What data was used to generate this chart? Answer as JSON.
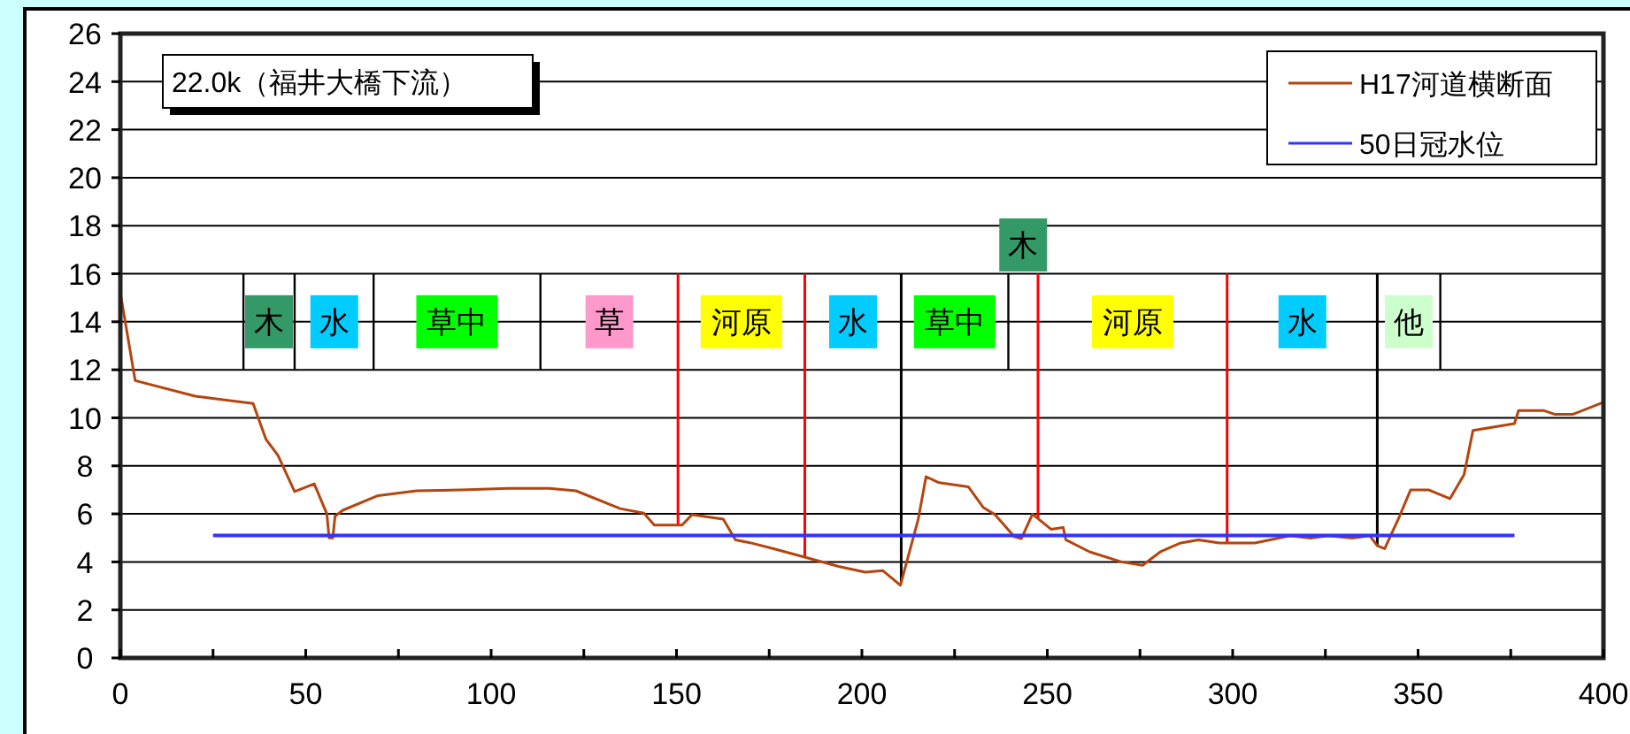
{
  "chart_data": {
    "type": "line",
    "title": "22.0k（福井大橋下流）",
    "series": [
      {
        "name": "H17河道横断面",
        "color": "#b5450f",
        "x": [
          0,
          4,
          20.2,
          35.8,
          39.3,
          42.5,
          47,
          52.3,
          55.7,
          56.3,
          57.3,
          57.9,
          60,
          69.5,
          79.9,
          91.8,
          104.6,
          115.7,
          122.9,
          134.8,
          141.2,
          144,
          151.5,
          154.2,
          162.6,
          165.9,
          169.8,
          176.2,
          185,
          193.7,
          200.9,
          205.6,
          210.4,
          215.2,
          217.3,
          220.8,
          228.7,
          232.7,
          235.9,
          241.2,
          243,
          246,
          251,
          254.3,
          255,
          261.4,
          270,
          275.7,
          280.5,
          286,
          290.8,
          296.4,
          306,
          315.5,
          321,
          325.8,
          332.2,
          337,
          339,
          341,
          345,
          348,
          352.8,
          358.6,
          362.4,
          364.8,
          376,
          377.1,
          384,
          386.8,
          391.8,
          400
        ],
        "values": [
          15.2,
          11.55,
          10.9,
          10.6,
          9.1,
          8.44,
          6.93,
          7.25,
          6.0,
          5.0,
          5.0,
          5.9,
          6.15,
          6.76,
          6.96,
          7.0,
          7.06,
          7.06,
          6.96,
          6.22,
          6.03,
          5.53,
          5.53,
          5.97,
          5.78,
          4.92,
          4.8,
          4.55,
          4.18,
          3.81,
          3.57,
          3.64,
          3.03,
          5.78,
          7.55,
          7.3,
          7.13,
          6.27,
          5.97,
          5.04,
          4.97,
          5.99,
          5.36,
          5.43,
          4.92,
          4.42,
          4.0,
          3.86,
          4.42,
          4.79,
          4.92,
          4.79,
          4.79,
          5.09,
          4.99,
          5.09,
          4.99,
          5.09,
          4.67,
          4.55,
          5.9,
          7.0,
          7.0,
          6.63,
          7.63,
          9.47,
          9.76,
          10.3,
          10.3,
          10.15,
          10.15,
          10.65
        ]
      },
      {
        "name": "50日冠水位",
        "color": "#3333ff",
        "x": [
          25,
          376
        ],
        "values": [
          5.1,
          5.1
        ]
      }
    ],
    "xlim": [
      0,
      400
    ],
    "xticks": [
      0,
      {
        "value": 25,
        "label": null
      },
      50,
      {
        "value": 75,
        "label": null
      },
      100,
      {
        "value": 125,
        "label": null
      },
      150,
      {
        "value": 175,
        "label": null
      },
      200,
      {
        "value": 225,
        "label": null
      },
      250,
      {
        "value": 275,
        "label": null
      },
      300,
      {
        "value": 325,
        "label": null
      },
      350,
      {
        "value": 375,
        "label": null
      },
      400
    ],
    "ylim": [
      0,
      26
    ],
    "yticks": [
      0,
      2,
      4,
      6,
      8,
      10,
      12,
      14,
      16,
      18,
      20,
      22,
      24,
      26
    ],
    "grid": "y",
    "legend": "top right",
    "marker": "none",
    "line_style": "solid",
    "annotations": [
      "木",
      "水",
      "草中",
      "草",
      "河原",
      "水",
      "草中",
      "木",
      "河原",
      "水",
      "他"
    ],
    "ref_lines": [
      {
        "axis": "x",
        "value": 150.4,
        "color": "#ff0000"
      },
      {
        "axis": "x",
        "value": 184.6,
        "color": "#ff0000"
      },
      {
        "axis": "x",
        "value": 210.6,
        "color": "#000000"
      },
      {
        "axis": "x",
        "value": 247.5,
        "color": "#ff0000"
      },
      {
        "axis": "x",
        "value": 298.5,
        "color": "#ff0000"
      },
      {
        "axis": "x",
        "value": 339,
        "color": "#000000"
      }
    ]
  }
}
